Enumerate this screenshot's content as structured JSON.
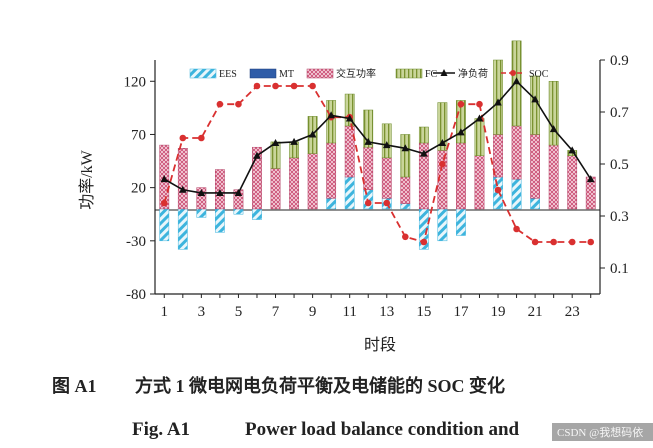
{
  "chart_data": {
    "type": "bar",
    "ylabel": "功率/kW",
    "xlabel": "时段",
    "ylim": [
      -80,
      140
    ],
    "y_ticks": [
      120,
      70,
      20,
      -30,
      -80
    ],
    "y2lim": [
      0.0,
      0.9
    ],
    "y2_ticks": [
      "0.9",
      "0.7",
      "0.5",
      "0.3",
      "0.1"
    ],
    "x": [
      1,
      2,
      3,
      4,
      5,
      6,
      7,
      8,
      9,
      10,
      11,
      12,
      13,
      14,
      15,
      16,
      17,
      18,
      19,
      20,
      21,
      22,
      23,
      24
    ],
    "x_tick_labels": [
      "1",
      "3",
      "5",
      "7",
      "9",
      "11",
      "13",
      "15",
      "17",
      "19",
      "21",
      "23"
    ],
    "legend_position": "top",
    "series": [
      {
        "name": "EES",
        "kind": "bar",
        "color": "#5bc0de",
        "values": [
          -30,
          -38,
          -8,
          -22,
          -5,
          -10,
          0,
          0,
          0,
          10,
          30,
          18,
          10,
          5,
          -38,
          -30,
          -25,
          0,
          30,
          28,
          10,
          0,
          0,
          0
        ]
      },
      {
        "name": "MT",
        "kind": "bar",
        "color": "#2f5ca8",
        "values": [
          0,
          0,
          0,
          0,
          0,
          0,
          0,
          0,
          0,
          0,
          0,
          0,
          0,
          0,
          0,
          0,
          0,
          0,
          0,
          0,
          0,
          0,
          0,
          0
        ]
      },
      {
        "name": "交互功率",
        "kind": "bar",
        "color": "#d46a8a",
        "values": [
          60,
          57,
          20,
          37,
          18,
          58,
          38,
          48,
          52,
          52,
          48,
          40,
          38,
          25,
          62,
          55,
          62,
          50,
          40,
          50,
          60,
          60,
          50,
          30
        ]
      },
      {
        "name": "FC",
        "kind": "bar",
        "color": "#a8bb6a",
        "values": [
          0,
          0,
          0,
          0,
          0,
          0,
          25,
          15,
          35,
          40,
          30,
          35,
          32,
          40,
          15,
          45,
          40,
          35,
          70,
          80,
          55,
          60,
          5,
          0
        ]
      },
      {
        "name": "净负荷",
        "kind": "line",
        "color": "#111111",
        "values": [
          28,
          18,
          15,
          15,
          15,
          50,
          62,
          63,
          70,
          88,
          85,
          63,
          60,
          57,
          52,
          62,
          72,
          85,
          100,
          120,
          103,
          75,
          55,
          28
        ]
      },
      {
        "name": "SOC",
        "kind": "line",
        "color": "#d93030",
        "axis": "right",
        "values": [
          0.35,
          0.6,
          0.6,
          0.73,
          0.73,
          0.8,
          0.8,
          0.8,
          0.8,
          0.68,
          0.68,
          0.35,
          0.35,
          0.22,
          0.2,
          0.5,
          0.73,
          0.73,
          0.4,
          0.25,
          0.2,
          0.2,
          0.2,
          0.2
        ]
      }
    ]
  },
  "caption": {
    "cn_label": "图 A1",
    "cn_text": "方式 1 微电网电负荷平衡及电储能的 SOC 变化",
    "en_label": "Fig. A1",
    "en_text": "Power load balance condition and"
  },
  "watermark": "CSDN @我想码依"
}
